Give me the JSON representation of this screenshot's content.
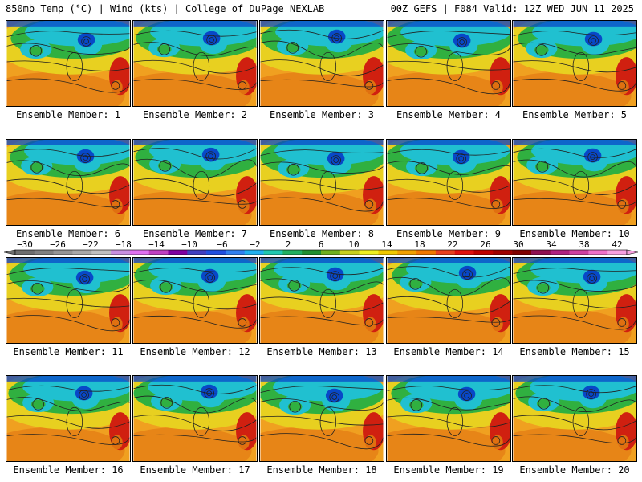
{
  "header": {
    "left": "850mb Temp (°C) | Wind (kts) | College of DuPage NEXLAB",
    "right": "00Z GEFS | F084 Valid: 12Z WED JUN 11 2025"
  },
  "member_label": "Ensemble Member:",
  "members": [
    1,
    2,
    3,
    4,
    5,
    6,
    7,
    8,
    9,
    10,
    11,
    12,
    13,
    14,
    15,
    16,
    17,
    18,
    19,
    20
  ],
  "colorbar": {
    "labels": [
      "-30",
      "-26",
      "-22",
      "-18",
      "-14",
      "-10",
      "-6",
      "-2",
      "2",
      "6",
      "10",
      "14",
      "18",
      "22",
      "26",
      "30",
      "34",
      "38",
      "42"
    ],
    "colors": [
      "#6e6e6e",
      "#808080",
      "#959595",
      "#a8a8a8",
      "#c0c0c0",
      "#c890e0",
      "#e070f0",
      "#c040c0",
      "#8000a0",
      "#4040c0",
      "#2050e0",
      "#3080f0",
      "#20b0f0",
      "#20c8b0",
      "#20b060",
      "#209030",
      "#70b020",
      "#c8d020",
      "#f0f020",
      "#f0c800",
      "#f0a000",
      "#f07800",
      "#e84020",
      "#e01010",
      "#c00000",
      "#a00000",
      "#800000",
      "#901050",
      "#b02080",
      "#d040a0",
      "#f070c8",
      "#f8a0e0"
    ]
  },
  "colors": {
    "cold": "#0848c8",
    "cool": "#20c0d0",
    "mild": "#30b040",
    "warm": "#e8d020",
    "hot": "#f0a020",
    "hotter": "#e07010",
    "extreme": "#d02010",
    "contour": "#202020"
  }
}
